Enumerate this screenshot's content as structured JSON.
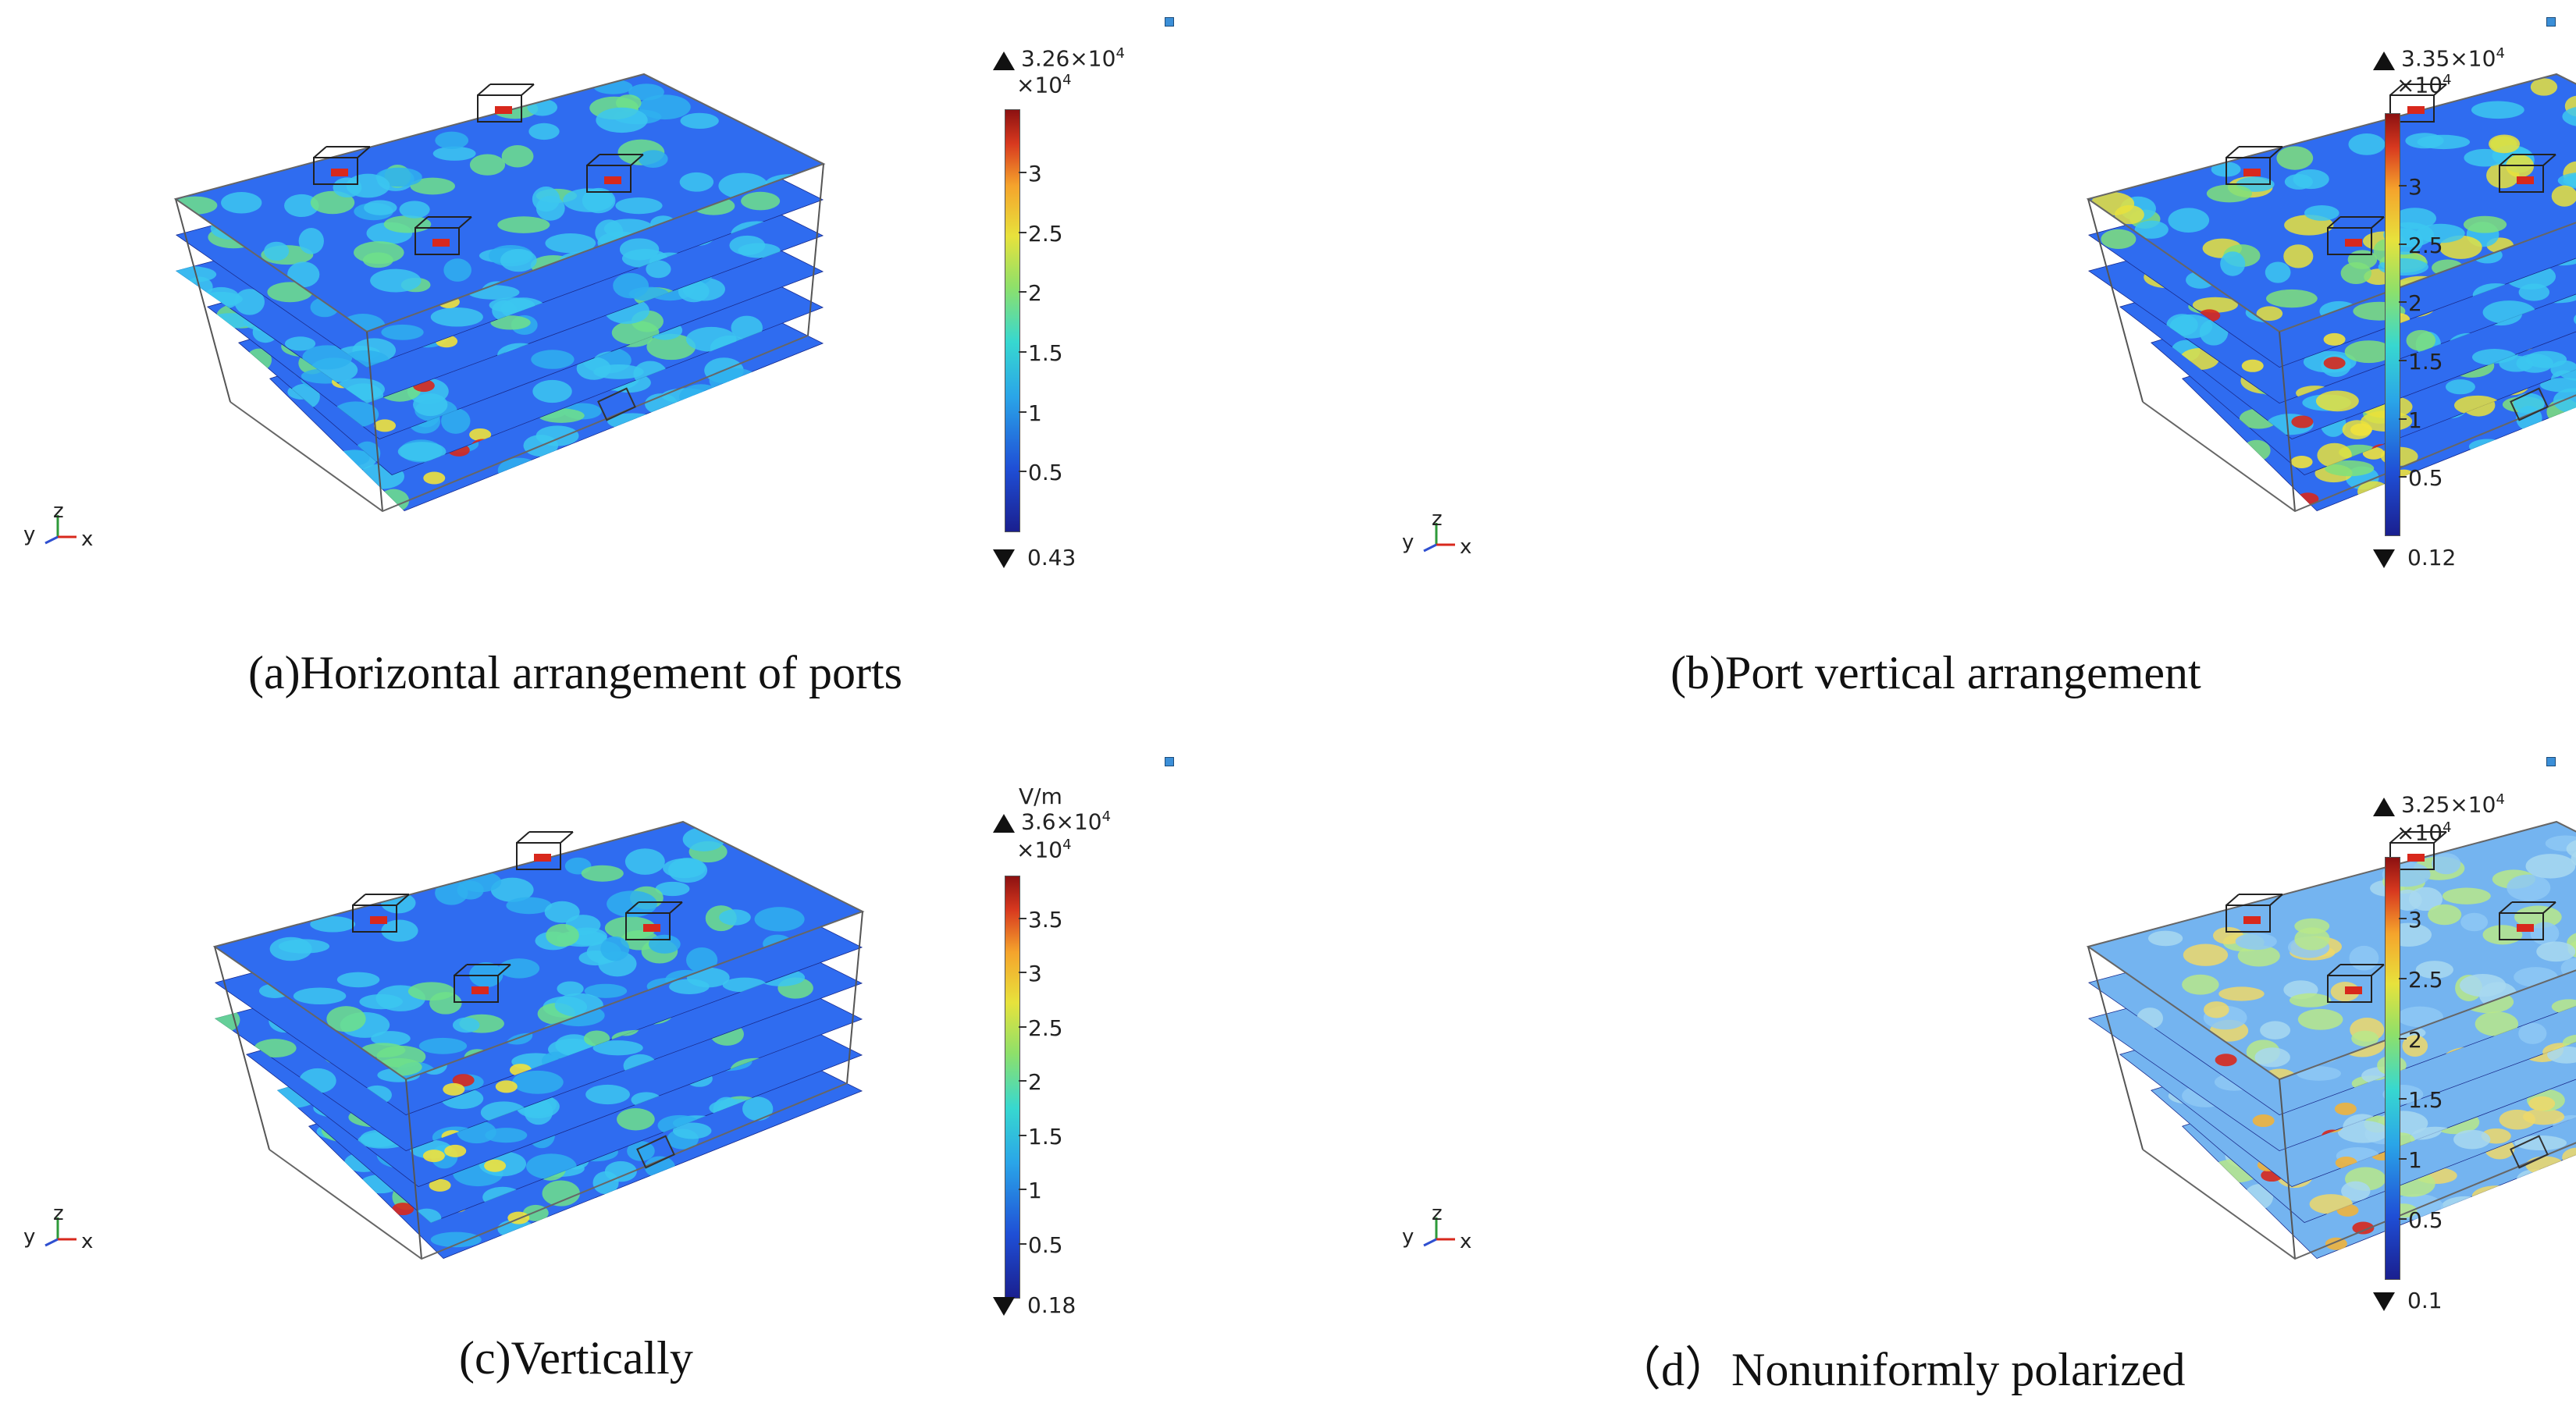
{
  "panels": [
    {
      "caption": "(a)Horizontal arrangement of ports",
      "unit": "",
      "max_label": "3.26×10",
      "max_exp": "4",
      "multiplier": "×10",
      "multiplier_exp": "4",
      "min_label": "0.43",
      "ticks": [
        "3",
        "2.5",
        "2",
        "1.5",
        "1",
        "0.5"
      ],
      "colormap_range": [
        0.43,
        32600
      ],
      "style": "bright"
    },
    {
      "caption": "(b)Port vertical arrangement",
      "unit": "",
      "max_label": "3.35×10",
      "max_exp": "4",
      "multiplier": "×10",
      "multiplier_exp": "4",
      "min_label": "0.12",
      "ticks": [
        "3",
        "2.5",
        "2",
        "1.5",
        "1",
        "0.5"
      ],
      "colormap_range": [
        0.12,
        33500
      ],
      "style": "grid"
    },
    {
      "caption": "(c)Vertically",
      "unit": "V/m",
      "max_label": "3.6×10",
      "max_exp": "4",
      "multiplier": "×10",
      "multiplier_exp": "4",
      "min_label": "0.18",
      "ticks": [
        "3.5",
        "3",
        "2.5",
        "2",
        "1.5",
        "1",
        "0.5"
      ],
      "colormap_range": [
        0.18,
        36000
      ],
      "style": "bright"
    },
    {
      "caption": "（d）Nonuniformly polarized",
      "unit": "",
      "max_label": "3.25×10",
      "max_exp": "4",
      "multiplier": "×10",
      "multiplier_exp": "4",
      "min_label": "0.1",
      "ticks": [
        "3",
        "2.5",
        "2",
        "1.5",
        "1",
        "0.5"
      ],
      "colormap_range": [
        0.1,
        32500
      ],
      "style": "pale"
    }
  ],
  "axis_labels": {
    "y": "y",
    "z": "z",
    "x": "x"
  },
  "colors": {
    "deep_blue": "#1f2fb8",
    "blue": "#2f6cf0",
    "cyan": "#3cc7f0",
    "green": "#6fe08a",
    "yellow": "#f0e23c",
    "red": "#d8281c"
  }
}
